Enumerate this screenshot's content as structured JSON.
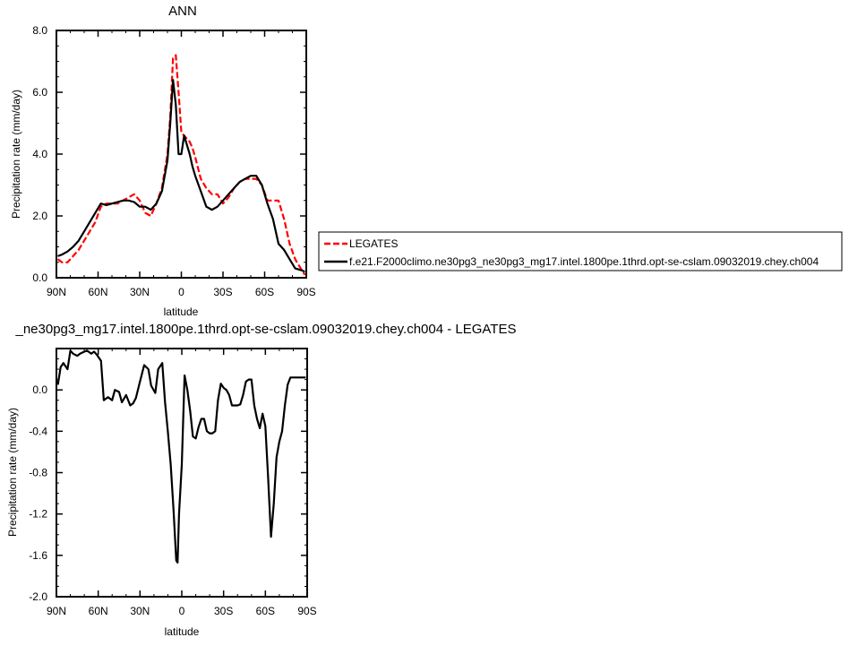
{
  "chart_data": [
    {
      "type": "line",
      "title": "ANN",
      "xlabel": "latitude",
      "ylabel": "Precipitation rate (mm/day)",
      "xlim": [
        90,
        -90
      ],
      "ylim": [
        0,
        8
      ],
      "x_tick_values": [
        90,
        60,
        30,
        0,
        -30,
        -60,
        -90
      ],
      "x_tick_labels": [
        "90N",
        "60N",
        "30N",
        "0",
        "30S",
        "60S",
        "90S"
      ],
      "y_tick_values": [
        0,
        2,
        4,
        6,
        8
      ],
      "y_tick_labels": [
        "0.0",
        "2.0",
        "4.0",
        "6.0",
        "8.0"
      ],
      "grid": false,
      "legend_position": "right",
      "series": [
        {
          "name": "LEGATES",
          "color": "#ff0000",
          "dash": "dashed",
          "x": [
            89,
            86,
            82,
            78,
            74,
            70,
            66,
            62,
            58,
            54,
            50,
            46,
            42,
            38,
            34,
            30,
            26,
            22,
            18,
            14,
            10,
            8,
            6,
            4,
            2,
            0,
            -2,
            -4,
            -6,
            -8,
            -10,
            -14,
            -18,
            -22,
            -26,
            -30,
            -34,
            -38,
            -42,
            -46,
            -50,
            -54,
            -58,
            -62,
            -66,
            -70,
            -74,
            -78,
            -82,
            -86,
            -89
          ],
          "y": [
            0.6,
            0.5,
            0.5,
            0.7,
            0.9,
            1.2,
            1.5,
            1.8,
            2.3,
            2.4,
            2.4,
            2.4,
            2.5,
            2.6,
            2.7,
            2.5,
            2.1,
            2.0,
            2.4,
            2.9,
            4.0,
            5.2,
            7.1,
            7.2,
            6.0,
            4.7,
            4.6,
            4.5,
            4.4,
            4.2,
            3.9,
            3.2,
            2.9,
            2.7,
            2.7,
            2.4,
            2.6,
            2.9,
            3.1,
            3.2,
            3.2,
            3.2,
            3.0,
            2.5,
            2.5,
            2.5,
            1.9,
            1.1,
            0.6,
            0.3,
            0.1
          ]
        },
        {
          "name": "f.e21.F2000climo.ne30pg3_ne30pg3_mg17.intel.1800pe.1thrd.opt-se-cslam.09032019.chey.ch004",
          "color": "#000000",
          "dash": "solid",
          "x": [
            89,
            86,
            82,
            78,
            74,
            70,
            66,
            62,
            58,
            54,
            50,
            46,
            42,
            38,
            34,
            30,
            26,
            22,
            18,
            14,
            10,
            8,
            6,
            4,
            2,
            0,
            -2,
            -4,
            -6,
            -8,
            -10,
            -14,
            -18,
            -22,
            -26,
            -30,
            -34,
            -38,
            -42,
            -46,
            -50,
            -54,
            -58,
            -62,
            -66,
            -70,
            -74,
            -78,
            -82,
            -86,
            -89
          ],
          "y": [
            0.7,
            0.75,
            0.85,
            1.0,
            1.2,
            1.5,
            1.8,
            2.1,
            2.4,
            2.35,
            2.4,
            2.45,
            2.5,
            2.5,
            2.45,
            2.3,
            2.3,
            2.2,
            2.4,
            2.8,
            3.8,
            5.0,
            6.4,
            5.6,
            4.0,
            4.0,
            4.6,
            4.3,
            4.0,
            3.6,
            3.3,
            2.8,
            2.3,
            2.2,
            2.3,
            2.5,
            2.7,
            2.9,
            3.1,
            3.2,
            3.3,
            3.3,
            3.0,
            2.4,
            1.9,
            1.1,
            0.9,
            0.6,
            0.3,
            0.25,
            0.2
          ]
        }
      ]
    },
    {
      "type": "line",
      "title": "_ne30pg3_mg17.intel.1800pe.1thrd.opt-se-cslam.09032019.chey.ch004 - LEGATES",
      "xlabel": "latitude",
      "ylabel": "Precipitation rate (mm/day)",
      "xlim": [
        90,
        -90
      ],
      "ylim": [
        -2.0,
        0.4
      ],
      "x_tick_values": [
        90,
        60,
        30,
        0,
        -30,
        -60,
        -90
      ],
      "x_tick_labels": [
        "90N",
        "60N",
        "30N",
        "0",
        "30S",
        "60S",
        "90S"
      ],
      "y_tick_values": [
        0,
        -0.4,
        -0.8,
        -1.2,
        -1.6,
        -2.0
      ],
      "y_tick_labels": [
        "0.0",
        "-0.4",
        "-0.8",
        "-1.2",
        "-1.6",
        "-2.0"
      ],
      "grid": false,
      "series": [
        {
          "color": "#000000",
          "dash": "solid",
          "x": [
            89,
            87,
            85,
            82,
            80,
            78,
            75,
            73,
            70,
            68,
            65,
            63,
            61,
            58,
            56,
            53,
            50,
            48,
            45,
            43,
            40,
            37,
            35,
            33,
            30,
            27,
            24,
            22,
            19,
            17,
            14,
            12,
            10,
            8,
            6,
            4,
            3,
            2,
            0,
            -2,
            -4,
            -6,
            -8,
            -10,
            -12,
            -14,
            -16,
            -18,
            -20,
            -22,
            -24,
            -26,
            -28,
            -30,
            -32,
            -34,
            -36,
            -38,
            -40,
            -42,
            -44,
            -46,
            -48,
            -50,
            -52,
            -54,
            -56,
            -58,
            -60,
            -62,
            -64,
            -66,
            -68,
            -70,
            -72,
            -74,
            -76,
            -78,
            -80,
            -82,
            -84,
            -86,
            -89
          ],
          "y": [
            0.05,
            0.22,
            0.26,
            0.2,
            0.38,
            0.35,
            0.33,
            0.35,
            0.37,
            0.38,
            0.35,
            0.37,
            0.34,
            0.28,
            -0.1,
            -0.07,
            -0.1,
            0.0,
            -0.02,
            -0.12,
            -0.05,
            -0.15,
            -0.13,
            -0.08,
            0.08,
            0.24,
            0.2,
            0.04,
            -0.03,
            0.2,
            0.26,
            -0.12,
            -0.4,
            -0.72,
            -1.15,
            -1.65,
            -1.67,
            -1.2,
            -0.72,
            0.14,
            0.0,
            -0.2,
            -0.45,
            -0.47,
            -0.36,
            -0.28,
            -0.28,
            -0.4,
            -0.42,
            -0.42,
            -0.4,
            -0.1,
            0.06,
            0.02,
            0.0,
            -0.05,
            -0.15,
            -0.15,
            -0.15,
            -0.14,
            -0.05,
            0.08,
            0.1,
            0.1,
            -0.15,
            -0.28,
            -0.37,
            -0.23,
            -0.35,
            -0.85,
            -1.42,
            -1.1,
            -0.65,
            -0.5,
            -0.4,
            -0.15,
            0.05,
            0.12,
            0.12,
            0.12,
            0.12,
            0.12,
            0.12
          ]
        }
      ]
    }
  ]
}
